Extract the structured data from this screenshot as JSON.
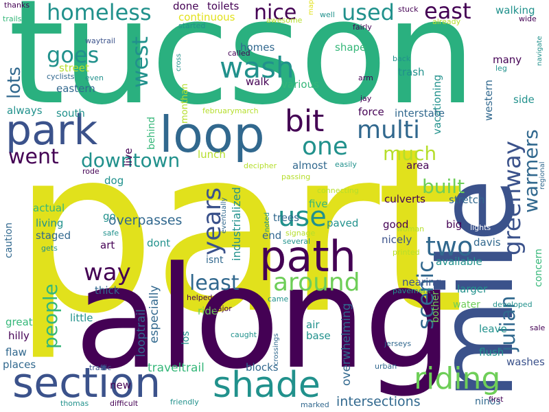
{
  "palette": {
    "purple": "#440154",
    "indigo": "#3b528b",
    "blue": "#31688e",
    "teal": "#21918c",
    "green": "#35b779",
    "lime": "#6ece58",
    "yellow": "#b5de2b",
    "bright_yellow": "#e1e11c"
  },
  "words": [
    {
      "text": "part",
      "color": "#e1e11c"
    },
    {
      "text": "tucson",
      "color": "#2ab07f"
    },
    {
      "text": "along",
      "color": "#440154"
    },
    {
      "text": "mile",
      "color": "#3b528b"
    },
    {
      "text": "loop",
      "color": "#31688e"
    },
    {
      "text": "park",
      "color": "#3b528b"
    },
    {
      "text": "section",
      "color": "#3b528b"
    },
    {
      "text": "path",
      "color": "#440154"
    },
    {
      "text": "shade",
      "color": "#21918c"
    },
    {
      "text": "riding",
      "color": "#6ece58"
    },
    {
      "text": "wash",
      "color": "#21918c"
    },
    {
      "text": "bit",
      "color": "#440154"
    },
    {
      "text": "multi",
      "color": "#31688e"
    },
    {
      "text": "one",
      "color": "#21918c"
    },
    {
      "text": "use",
      "color": "#21918c"
    },
    {
      "text": "around",
      "color": "#6ece58"
    },
    {
      "text": "years",
      "color": "#3b528b"
    },
    {
      "text": "way",
      "color": "#440154"
    },
    {
      "text": "least",
      "color": "#31688e"
    },
    {
      "text": "people",
      "color": "#35b779"
    },
    {
      "text": "two",
      "color": "#31688e"
    },
    {
      "text": "scenic",
      "color": "#31688e"
    },
    {
      "text": "julian",
      "color": "#31688e"
    },
    {
      "text": "greenway",
      "color": "#3b528b"
    },
    {
      "text": "warmers",
      "color": "#31688e"
    },
    {
      "text": "much",
      "color": "#b5de2b"
    },
    {
      "text": "built",
      "color": "#6ece58"
    },
    {
      "text": "went",
      "color": "#440154"
    },
    {
      "text": "downtown",
      "color": "#21918c"
    },
    {
      "text": "homeless",
      "color": "#21918c"
    },
    {
      "text": "goes",
      "color": "#21918c"
    },
    {
      "text": "west",
      "color": "#21918c"
    },
    {
      "text": "nice",
      "color": "#440154"
    },
    {
      "text": "used",
      "color": "#21918c"
    },
    {
      "text": "east",
      "color": "#440154"
    },
    {
      "text": "lots",
      "color": "#31688e"
    },
    {
      "text": "intersections",
      "color": "#31688e"
    },
    {
      "text": "overpasses",
      "color": "#31688e"
    },
    {
      "text": "traveltrail",
      "color": "#35b779"
    },
    {
      "text": "looptrail",
      "color": "#31688e"
    },
    {
      "text": "especially",
      "color": "#31688e"
    },
    {
      "text": "overwhelming",
      "color": "#31688e"
    },
    {
      "text": "industrialized",
      "color": "#21918c"
    },
    {
      "text": "vacationing",
      "color": "#21918c"
    },
    {
      "text": "walking",
      "color": "#21918c"
    },
    {
      "text": "continuous",
      "color": "#e1e11c"
    },
    {
      "text": "interstate",
      "color": "#31688e"
    },
    {
      "text": "force",
      "color": "#440154"
    },
    {
      "text": "western",
      "color": "#31688e"
    },
    {
      "text": "side",
      "color": "#21918c"
    },
    {
      "text": "culverts",
      "color": "#440154"
    },
    {
      "text": "stretch",
      "color": "#31688e"
    },
    {
      "text": "nicely",
      "color": "#3b528b"
    },
    {
      "text": "davis",
      "color": "#31688e"
    },
    {
      "text": "available",
      "color": "#21918c"
    },
    {
      "text": "larger",
      "color": "#21918c"
    },
    {
      "text": "water",
      "color": "#6ece58"
    },
    {
      "text": "leave",
      "color": "#21918c"
    },
    {
      "text": "flush",
      "color": "#21918c"
    },
    {
      "text": "washes",
      "color": "#3b528b"
    },
    {
      "text": "blocks",
      "color": "#31688e"
    },
    {
      "text": "base",
      "color": "#21918c"
    },
    {
      "text": "air",
      "color": "#21918c"
    },
    {
      "text": "ride",
      "color": "#6ece58"
    },
    {
      "text": "little",
      "color": "#21918c"
    },
    {
      "text": "thick",
      "color": "#31688e"
    },
    {
      "text": "hilly",
      "color": "#440154"
    },
    {
      "text": "great",
      "color": "#35b779"
    },
    {
      "text": "flaw",
      "color": "#31688e"
    },
    {
      "text": "places",
      "color": "#31688e"
    },
    {
      "text": "new",
      "color": "#440154"
    },
    {
      "text": "art",
      "color": "#440154"
    },
    {
      "text": "dont",
      "color": "#21918c"
    },
    {
      "text": "living",
      "color": "#21918c"
    },
    {
      "text": "staged",
      "color": "#31688e"
    },
    {
      "text": "actual",
      "color": "#35b779"
    },
    {
      "text": "caution",
      "color": "#31688e"
    },
    {
      "text": "go",
      "color": "#21918c"
    },
    {
      "text": "dog",
      "color": "#21918c"
    },
    {
      "text": "trees",
      "color": "#31688e"
    },
    {
      "text": "five",
      "color": "#35b779"
    },
    {
      "text": "paved",
      "color": "#21918c"
    },
    {
      "text": "good",
      "color": "#440154"
    },
    {
      "text": "big",
      "color": "#440154"
    },
    {
      "text": "end",
      "color": "#31688e"
    },
    {
      "text": "area",
      "color": "#440154"
    },
    {
      "text": "almost",
      "color": "#31688e"
    },
    {
      "text": "always",
      "color": "#21918c"
    },
    {
      "text": "south",
      "color": "#21918c"
    },
    {
      "text": "eastern",
      "color": "#31688e"
    },
    {
      "text": "street",
      "color": "#b5de2b"
    },
    {
      "text": "trash",
      "color": "#21918c"
    },
    {
      "text": "shape",
      "color": "#35b779"
    },
    {
      "text": "homes",
      "color": "#31688e"
    },
    {
      "text": "various",
      "color": "#35b779"
    },
    {
      "text": "walk",
      "color": "#440154"
    },
    {
      "text": "toilets",
      "color": "#440154"
    },
    {
      "text": "done",
      "color": "#440154"
    },
    {
      "text": "many",
      "color": "#440154"
    },
    {
      "text": "live",
      "color": "#440154"
    },
    {
      "text": "behind",
      "color": "#35b779"
    },
    {
      "text": "lunch",
      "color": "#b5de2b"
    },
    {
      "text": "isnt",
      "color": "#31688e"
    },
    {
      "text": "los",
      "color": "#21918c"
    },
    {
      "text": "concern",
      "color": "#35b779"
    },
    {
      "text": "nearing",
      "color": "#3b528b"
    },
    {
      "text": "bother",
      "color": "#6ece58"
    },
    {
      "text": "ninos",
      "color": "#31688e"
    },
    {
      "text": "monthan",
      "color": "#b5de2b"
    },
    {
      "text": "lights",
      "color": "#ffffff"
    },
    {
      "text": "cyclists",
      "color": "#31688e"
    },
    {
      "text": "waytrail",
      "color": "#3b528b"
    },
    {
      "text": "even",
      "color": "#21918c"
    },
    {
      "text": "thanks",
      "color": "#440154"
    },
    {
      "text": "trails",
      "color": "#35b779"
    },
    {
      "text": "started",
      "color": "#21918c"
    },
    {
      "text": "awesome",
      "color": "#b5de2b"
    },
    {
      "text": "well",
      "color": "#21918c"
    },
    {
      "text": "fairly",
      "color": "#440154"
    },
    {
      "text": "stuck",
      "color": "#440154"
    },
    {
      "text": "already",
      "color": "#b5de2b"
    },
    {
      "text": "wide",
      "color": "#440154"
    },
    {
      "text": "navigate",
      "color": "#21918c"
    },
    {
      "text": "arm",
      "color": "#440154"
    },
    {
      "text": "back",
      "color": "#21918c"
    },
    {
      "text": "leg",
      "color": "#21918c"
    },
    {
      "text": "jay",
      "color": "#440154"
    },
    {
      "text": "called",
      "color": "#440154"
    },
    {
      "text": "cross",
      "color": "#21918c"
    },
    {
      "text": "map",
      "color": "#e1e11c"
    },
    {
      "text": "februarymarch",
      "color": "#b5de2b"
    },
    {
      "text": "decipher",
      "color": "#b5de2b"
    },
    {
      "text": "passing",
      "color": "#b5de2b"
    },
    {
      "text": "easily",
      "color": "#21918c"
    },
    {
      "text": "regional",
      "color": "#31688e"
    },
    {
      "text": "connecting",
      "color": "#b5de2b"
    },
    {
      "text": "woman",
      "color": "#b5de2b"
    },
    {
      "text": "noted",
      "color": "#21918c"
    },
    {
      "text": "several",
      "color": "#21918c"
    },
    {
      "text": "signage",
      "color": "#b5de2b"
    },
    {
      "text": "printed",
      "color": "#b5de2b"
    },
    {
      "text": "pavement",
      "color": "#21918c"
    },
    {
      "text": "came",
      "color": "#21918c"
    },
    {
      "text": "developed",
      "color": "#21918c"
    },
    {
      "text": "helped",
      "color": "#440154"
    },
    {
      "text": "major",
      "color": "#440154"
    },
    {
      "text": "caught",
      "color": "#21918c"
    },
    {
      "text": "crossings",
      "color": "#31688e"
    },
    {
      "text": "sale",
      "color": "#440154"
    },
    {
      "text": "jerseys",
      "color": "#31688e"
    },
    {
      "text": "urban",
      "color": "#31688e"
    },
    {
      "text": "marked",
      "color": "#31688e"
    },
    {
      "text": "first",
      "color": "#440154"
    },
    {
      "text": "friendly",
      "color": "#21918c"
    },
    {
      "text": "difficult",
      "color": "#440154"
    },
    {
      "text": "thomas",
      "color": "#21918c"
    },
    {
      "text": "traffic",
      "color": "#3b528b"
    },
    {
      "text": "gets",
      "color": "#21918c"
    },
    {
      "text": "safe",
      "color": "#21918c"
    },
    {
      "text": "rode",
      "color": "#440154"
    },
    {
      "text": "eventually",
      "color": "#31688e"
    }
  ]
}
